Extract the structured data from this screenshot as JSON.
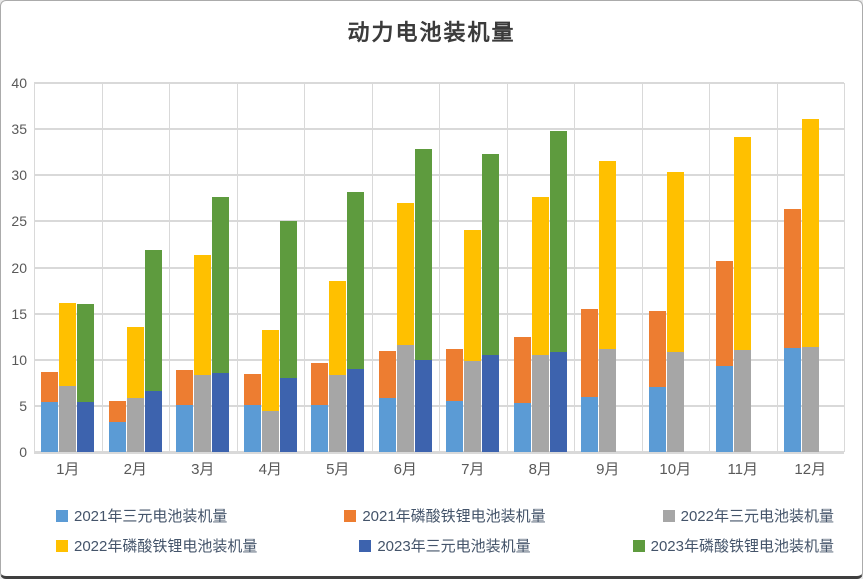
{
  "title": "动力电池装机量",
  "colors": {
    "blue_light": "#5B9BD5",
    "orange": "#ED7D31",
    "gray": "#A6A6A6",
    "yellow": "#FFC000",
    "blue_dark": "#3D63AE",
    "green": "#5E9B3E",
    "gridline": "#D9D9D9",
    "axis_text": "#595959",
    "legend_text": "#44546A",
    "title_text": "#3B3B3B"
  },
  "y_axis": {
    "ticks": [
      0,
      5,
      10,
      15,
      20,
      25,
      30,
      35,
      40
    ],
    "max": 40
  },
  "chart_data": {
    "type": "bar",
    "subtype": "stacked-clustered",
    "title": "动力电池装机量",
    "xlabel": "",
    "ylabel": "",
    "ylim": [
      0,
      40
    ],
    "grid": true,
    "legend_position": "bottom",
    "categories": [
      "1月",
      "2月",
      "3月",
      "4月",
      "5月",
      "6月",
      "7月",
      "8月",
      "9月",
      "10月",
      "11月",
      "12月"
    ],
    "series": [
      {
        "name": "2021年三元电池装机量",
        "color": "#5B9BD5",
        "stack": "2021",
        "values": [
          5.4,
          3.2,
          5.1,
          5.1,
          5.1,
          5.9,
          5.5,
          5.3,
          6.0,
          7.0,
          9.3,
          11.3
        ]
      },
      {
        "name": "2021年磷酸铁锂电池装机量",
        "color": "#ED7D31",
        "stack": "2021",
        "values": [
          3.3,
          2.3,
          3.8,
          3.4,
          4.6,
          5.1,
          5.7,
          7.2,
          9.5,
          8.3,
          11.4,
          15.0
        ]
      },
      {
        "name": "2022年三元电池装机量",
        "color": "#A6A6A6",
        "stack": "2022",
        "values": [
          7.2,
          5.9,
          8.3,
          4.5,
          8.4,
          11.6,
          9.9,
          10.5,
          11.2,
          10.8,
          11.1,
          11.4
        ]
      },
      {
        "name": "2022年磷酸铁锂电池装机量",
        "color": "#FFC000",
        "stack": "2022",
        "values": [
          9.0,
          7.7,
          13.1,
          8.7,
          10.1,
          15.4,
          14.2,
          17.1,
          20.3,
          19.6,
          23.0,
          24.7
        ]
      },
      {
        "name": "2023年三元电池装机量",
        "color": "#3D63AE",
        "stack": "2023",
        "values": [
          5.4,
          6.6,
          8.6,
          8.0,
          9.0,
          10.0,
          10.5,
          10.8,
          null,
          null,
          null,
          null
        ]
      },
      {
        "name": "2023年磷酸铁锂电池装机量",
        "color": "#5E9B3E",
        "stack": "2023",
        "values": [
          10.6,
          15.3,
          19.0,
          17.0,
          19.2,
          22.8,
          21.8,
          24.0,
          null,
          null,
          null,
          null
        ]
      }
    ],
    "legend_rows": [
      [
        0,
        1,
        2
      ],
      [
        3,
        4,
        5
      ]
    ]
  }
}
